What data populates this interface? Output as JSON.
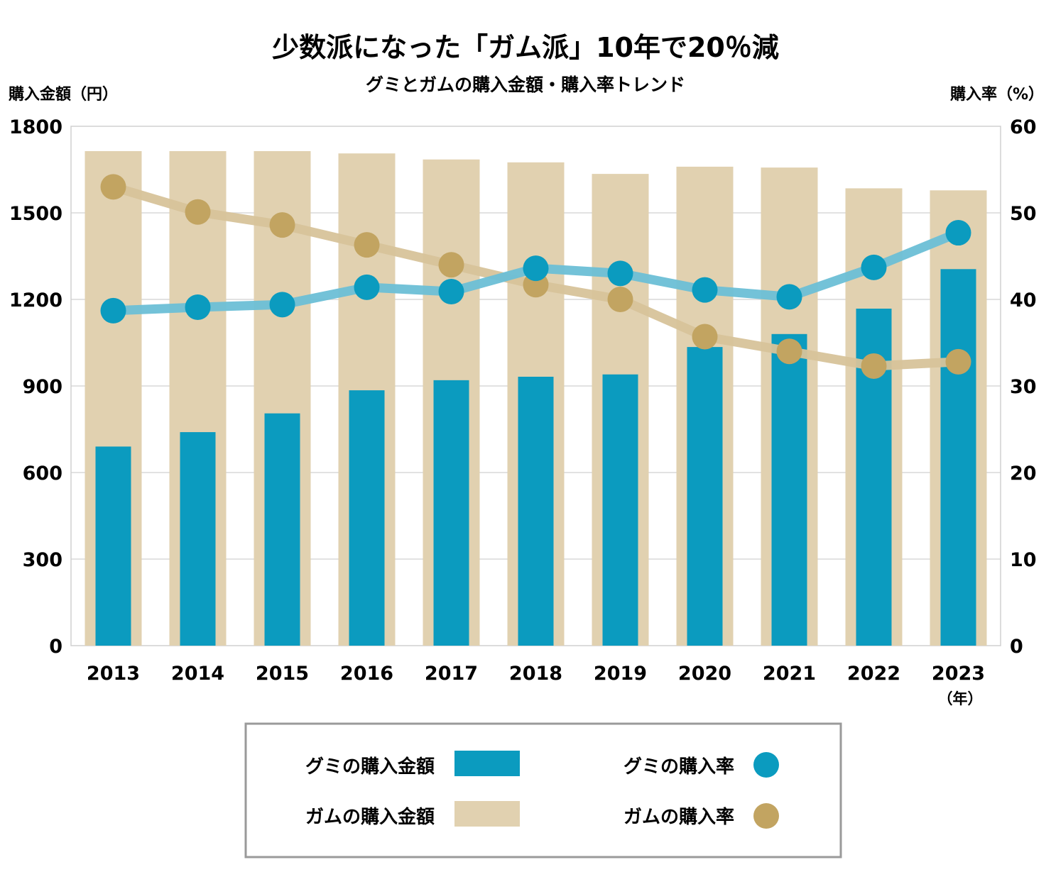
{
  "colors": {
    "gumi": "#0b9bbf",
    "gum_bar": "#e1d1b0",
    "gumi_line": "#6cbfd6",
    "gum_line": "#d7c39a",
    "gum_dot": "#c2a461",
    "grid": "#d8d8d8",
    "frame": "#d0d0d0",
    "legend_border": "#9a9a9a"
  },
  "chart_data": {
    "type": "bar+line",
    "title": "少数派になった「ガム派」10年で20％減",
    "subtitle": "グミとガムの購入金額・購入率トレンド",
    "ylabel_left": "購入金額（円）",
    "ylabel_right": "購入率（%）",
    "x_unit": "（年）",
    "categories": [
      "2013",
      "2014",
      "2015",
      "2016",
      "2017",
      "2018",
      "2019",
      "2020",
      "2021",
      "2022",
      "2023"
    ],
    "ylim_left": [
      0,
      1800
    ],
    "yticks_left": [
      "0",
      "300",
      "600",
      "900",
      "1200",
      "1500",
      "1800"
    ],
    "ylim_right": [
      0,
      60
    ],
    "yticks_right": [
      "0",
      "10",
      "20",
      "30",
      "40",
      "50",
      "60"
    ],
    "series": [
      {
        "name": "グミの購入金額",
        "type": "bar",
        "axis": "left",
        "values": [
          690,
          740,
          805,
          885,
          920,
          932,
          940,
          1035,
          1080,
          1168,
          1305
        ]
      },
      {
        "name": "ガムの購入金額",
        "type": "bar",
        "axis": "left",
        "values": [
          1714,
          1714,
          1714,
          1706,
          1685,
          1675,
          1635,
          1660,
          1657,
          1585,
          1578
        ]
      },
      {
        "name": "グミの購入率",
        "type": "line",
        "axis": "right",
        "values": [
          38.7,
          39.1,
          39.4,
          41.4,
          40.9,
          43.6,
          43.0,
          41.1,
          40.3,
          43.7,
          47.7
        ]
      },
      {
        "name": "ガムの購入率",
        "type": "line",
        "axis": "right",
        "values": [
          53.0,
          50.1,
          48.6,
          46.3,
          44.0,
          41.7,
          40.0,
          35.7,
          34.0,
          32.3,
          32.8
        ]
      }
    ],
    "legend": [
      {
        "label": "グミの購入金額",
        "kind": "bar",
        "series": "gumi"
      },
      {
        "label": "グミの購入率",
        "kind": "dot",
        "series": "gumi"
      },
      {
        "label": "ガムの購入金額",
        "kind": "bar",
        "series": "gum"
      },
      {
        "label": "ガムの購入率",
        "kind": "dot",
        "series": "gum"
      }
    ]
  }
}
